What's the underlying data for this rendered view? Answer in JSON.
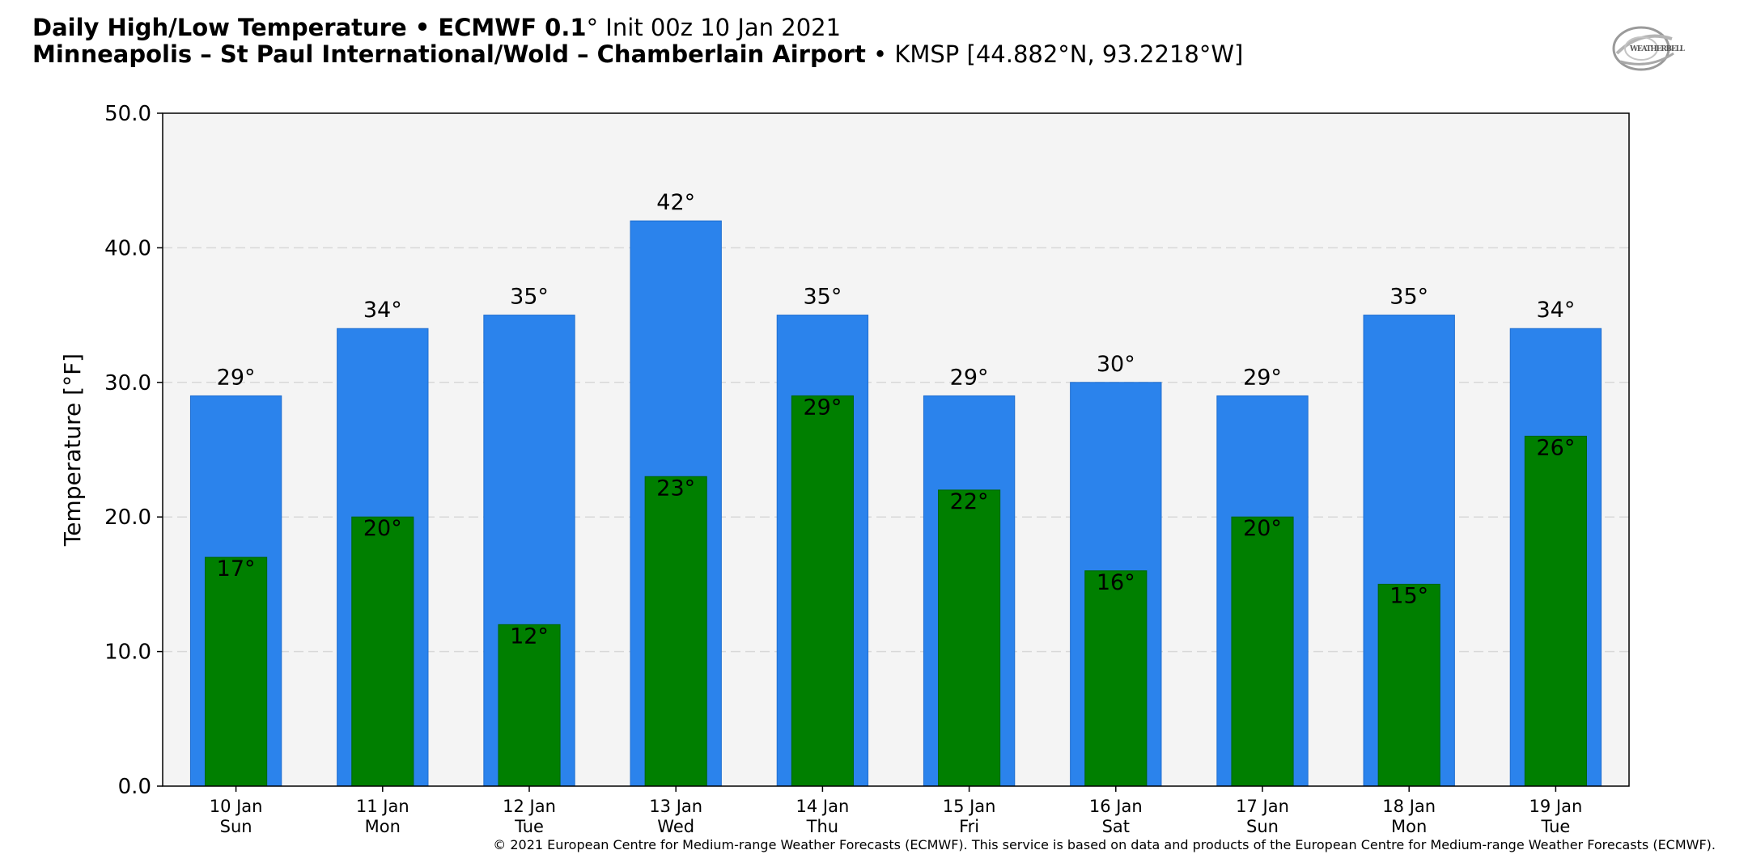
{
  "header": {
    "title_bold": "Daily High/Low Temperature • ECMWF 0.1",
    "title_deg": "°",
    "title_rest": " Init 00z 10 Jan 2021",
    "station_bold": "Minneapolis – St Paul International/Wold – Chamberlain Airport",
    "station_rest": " • KMSP [44.882°N, 93.2218°W]"
  },
  "logo": {
    "text": "WEATHERBELL"
  },
  "copyright": "© 2021 European Centre for Medium-range Weather Forecasts (ECMWF). This service is based on data and products of the European Centre for Medium-range Weather Forecasts (ECMWF).",
  "colors": {
    "high": "#2b83ec",
    "low": "#007f00",
    "plot_bg": "#f4f4f4",
    "grid": "#d8d8d8"
  },
  "chart_data": {
    "type": "bar",
    "title": "Daily High/Low Temperature • ECMWF 0.1° Init 00z 10 Jan 2021",
    "ylabel": "Temperature [°F]",
    "xlabel": "",
    "ylim": [
      0,
      50
    ],
    "yticks": [
      "0.0",
      "10.0",
      "20.0",
      "30.0",
      "40.0",
      "50.0"
    ],
    "grid": "horizontal dashed",
    "categories": [
      [
        "10 Jan",
        "Sun"
      ],
      [
        "11 Jan",
        "Mon"
      ],
      [
        "12 Jan",
        "Tue"
      ],
      [
        "13 Jan",
        "Wed"
      ],
      [
        "14 Jan",
        "Thu"
      ],
      [
        "15 Jan",
        "Fri"
      ],
      [
        "16 Jan",
        "Sat"
      ],
      [
        "17 Jan",
        "Sun"
      ],
      [
        "18 Jan",
        "Mon"
      ],
      [
        "19 Jan",
        "Tue"
      ]
    ],
    "series": [
      {
        "key": "high",
        "values": [
          29,
          34,
          35,
          42,
          35,
          29,
          30,
          29,
          35,
          34
        ],
        "labels": [
          "29°",
          "34°",
          "35°",
          "42°",
          "35°",
          "29°",
          "30°",
          "29°",
          "35°",
          "34°"
        ]
      },
      {
        "key": "low",
        "values": [
          17,
          20,
          12,
          23,
          29,
          22,
          16,
          20,
          15,
          26
        ],
        "labels": [
          "17°",
          "20°",
          "12°",
          "23°",
          "29°",
          "22°",
          "16°",
          "20°",
          "15°",
          "26°"
        ]
      }
    ]
  }
}
